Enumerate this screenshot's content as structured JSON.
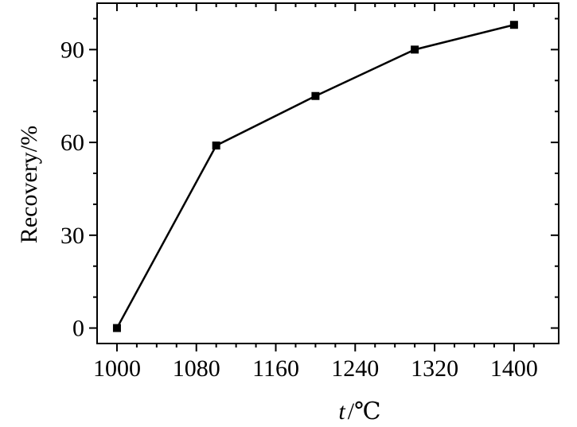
{
  "chart_data": {
    "type": "line",
    "title": "",
    "xlabel_var": "t",
    "xlabel_unit": "/℃",
    "ylabel": "Recovery/%",
    "xlim": [
      980,
      1445
    ],
    "ylim": [
      -5,
      105
    ],
    "xticks": [
      1000,
      1080,
      1160,
      1240,
      1320,
      1400
    ],
    "xticks_minor_step": 20,
    "yticks": [
      0,
      30,
      60,
      90
    ],
    "yticks_minor_step": 10,
    "grid": false,
    "legend": "none",
    "series": [
      {
        "marker": "square",
        "x": [
          1000,
          1100,
          1200,
          1300,
          1400
        ],
        "y": [
          0,
          59,
          75,
          90,
          98
        ]
      }
    ],
    "colors": {
      "line": "#000000",
      "marker": "#000000",
      "axis": "#000000"
    }
  }
}
